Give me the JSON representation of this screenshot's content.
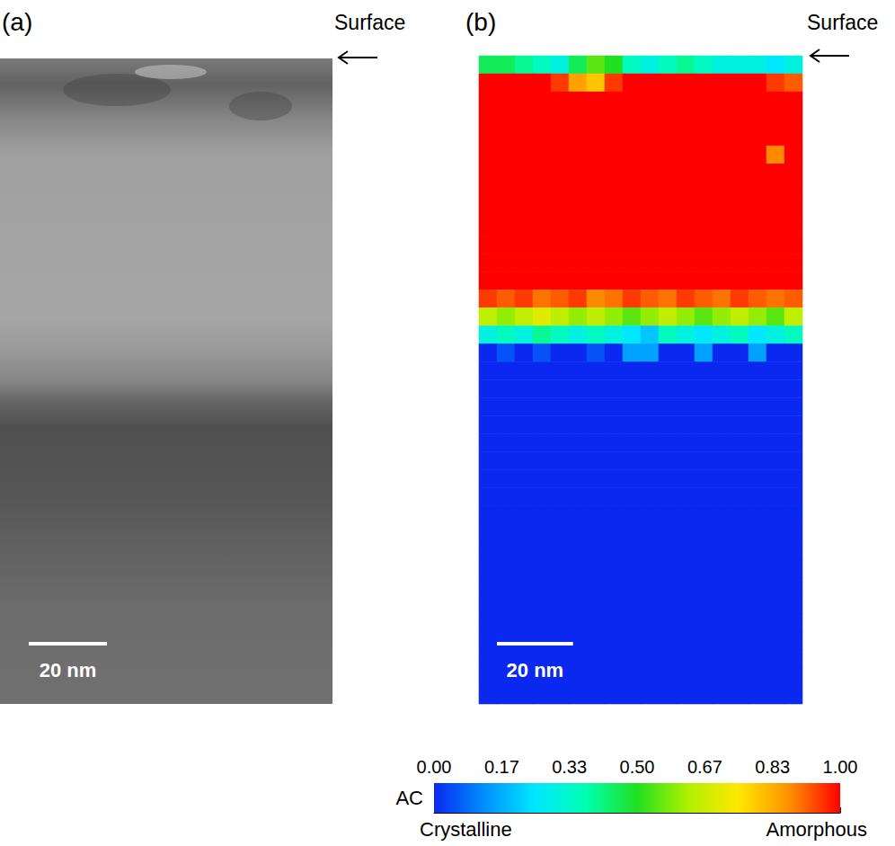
{
  "figure": {
    "panels": [
      {
        "letter": "(a)",
        "annotation": "Surface"
      },
      {
        "letter": "(b)",
        "annotation": "Surface"
      }
    ],
    "scale_bar": {
      "length_nm": 20,
      "label": "20 nm"
    },
    "field_of_view_nm": [
      85,
      170
    ]
  },
  "chart_data": {
    "type": "heatmap",
    "cells": [
      [
        0.45,
        0.45,
        0.4,
        0.35,
        0.3,
        0.45,
        0.55,
        0.5,
        0.35,
        0.3,
        0.35,
        0.4,
        0.35,
        0.3,
        0.3,
        0.3,
        0.25,
        0.3
      ],
      [
        1,
        1,
        1,
        1,
        0.95,
        0.85,
        0.8,
        0.95,
        1,
        1,
        1,
        1,
        1,
        1,
        1,
        1,
        0.95,
        0.92
      ],
      [
        1,
        1,
        1,
        1,
        1,
        1,
        1,
        1,
        1,
        1,
        1,
        1,
        1,
        1,
        1,
        1,
        1,
        1
      ],
      [
        1,
        1,
        1,
        1,
        1,
        1,
        1,
        1,
        1,
        1,
        1,
        1,
        1,
        1,
        1,
        1,
        1,
        1
      ],
      [
        1,
        1,
        1,
        1,
        1,
        1,
        1,
        1,
        1,
        1,
        1,
        1,
        1,
        1,
        1,
        1,
        1,
        1
      ],
      [
        1,
        1,
        1,
        1,
        1,
        1,
        1,
        1,
        1,
        1,
        1,
        1,
        1,
        1,
        1,
        1,
        0.88,
        1
      ],
      [
        1,
        1,
        1,
        1,
        1,
        1,
        1,
        1,
        1,
        1,
        1,
        1,
        1,
        1,
        1,
        1,
        1,
        1
      ],
      [
        1,
        1,
        1,
        1,
        1,
        1,
        1,
        1,
        1,
        1,
        1,
        1,
        1,
        1,
        1,
        1,
        1,
        1
      ],
      [
        1,
        1,
        1,
        1,
        1,
        1,
        1,
        1,
        1,
        1,
        1,
        1,
        1,
        1,
        1,
        1,
        1,
        1
      ],
      [
        1,
        1,
        1,
        1,
        1,
        1,
        1,
        1,
        1,
        1,
        1,
        1,
        1,
        1,
        1,
        1,
        1,
        1
      ],
      [
        1,
        1,
        1,
        1,
        1,
        1,
        1,
        1,
        1,
        1,
        1,
        1,
        1,
        1,
        1,
        1,
        1,
        1
      ],
      [
        1,
        1,
        1,
        1,
        1,
        1,
        1,
        1,
        1,
        1,
        1,
        1,
        1,
        1,
        1,
        1,
        1,
        1
      ],
      [
        1,
        1,
        1,
        1,
        1,
        1,
        1,
        1,
        1,
        1,
        1,
        1,
        1,
        1,
        1,
        1,
        1,
        1
      ],
      [
        0.95,
        0.92,
        0.95,
        0.9,
        0.92,
        0.95,
        0.88,
        0.9,
        0.95,
        0.92,
        0.9,
        0.95,
        0.92,
        0.9,
        0.95,
        0.92,
        0.9,
        0.92
      ],
      [
        0.65,
        0.6,
        0.65,
        0.7,
        0.65,
        0.6,
        0.65,
        0.6,
        0.55,
        0.6,
        0.65,
        0.6,
        0.55,
        0.6,
        0.65,
        0.6,
        0.55,
        0.65
      ],
      [
        0.3,
        0.35,
        0.3,
        0.4,
        0.35,
        0.3,
        0.35,
        0.3,
        0.25,
        0.2,
        0.35,
        0.3,
        0.25,
        0.3,
        0.35,
        0.25,
        0.3,
        0.35
      ],
      [
        0,
        0.05,
        0,
        0.05,
        0,
        0,
        0.05,
        0,
        0.15,
        0.15,
        0,
        0,
        0.15,
        0,
        0,
        0.15,
        0,
        0
      ],
      [
        0,
        0,
        0,
        0,
        0,
        0,
        0,
        0,
        0,
        0,
        0,
        0,
        0,
        0,
        0,
        0,
        0,
        0
      ],
      [
        0,
        0,
        0,
        0,
        0,
        0,
        0,
        0,
        0,
        0,
        0,
        0,
        0,
        0,
        0,
        0,
        0,
        0
      ],
      [
        0,
        0,
        0,
        0,
        0,
        0,
        0,
        0,
        0,
        0,
        0,
        0,
        0,
        0,
        0,
        0,
        0,
        0
      ],
      [
        0,
        0,
        0,
        0,
        0,
        0,
        0,
        0,
        0,
        0,
        0,
        0,
        0,
        0,
        0,
        0,
        0,
        0
      ],
      [
        0,
        0,
        0,
        0,
        0,
        0,
        0,
        0,
        0,
        0,
        0,
        0,
        0,
        0,
        0,
        0,
        0,
        0
      ],
      [
        0,
        0,
        0,
        0,
        0,
        0,
        0,
        0,
        0,
        0,
        0,
        0,
        0,
        0,
        0,
        0,
        0,
        0
      ],
      [
        0,
        0,
        0,
        0,
        0,
        0,
        0,
        0,
        0,
        0,
        0,
        0,
        0,
        0,
        0,
        0,
        0,
        0
      ],
      [
        0,
        0,
        0,
        0,
        0,
        0,
        0,
        0,
        0,
        0,
        0,
        0,
        0,
        0,
        0,
        0,
        0,
        0
      ],
      [
        0,
        0,
        0,
        0,
        0,
        0,
        0,
        0,
        0,
        0,
        0,
        0,
        0,
        0,
        0,
        0,
        0,
        0
      ],
      [
        0,
        0,
        0,
        0,
        0,
        0,
        0,
        0,
        0,
        0,
        0,
        0,
        0,
        0,
        0,
        0,
        0,
        0
      ],
      [
        0,
        0,
        0,
        0,
        0,
        0,
        0,
        0,
        0,
        0,
        0,
        0,
        0,
        0,
        0,
        0,
        0,
        0
      ],
      [
        0,
        0,
        0,
        0,
        0,
        0,
        0,
        0,
        0,
        0,
        0,
        0,
        0,
        0,
        0,
        0,
        0,
        0
      ],
      [
        0,
        0,
        0,
        0,
        0,
        0,
        0,
        0,
        0,
        0,
        0,
        0,
        0,
        0,
        0,
        0,
        0,
        0
      ],
      [
        0,
        0,
        0,
        0,
        0,
        0,
        0,
        0,
        0,
        0,
        0,
        0,
        0,
        0,
        0,
        0,
        0,
        0
      ],
      [
        0,
        0,
        0,
        0,
        0,
        0,
        0,
        0,
        0,
        0,
        0,
        0,
        0,
        0,
        0,
        0,
        0,
        0
      ],
      [
        0,
        0,
        0,
        0,
        0,
        0,
        0,
        0,
        0,
        0,
        0,
        0,
        0,
        0,
        0,
        0,
        0,
        0
      ],
      [
        0,
        0,
        0,
        0,
        0,
        0,
        0,
        0,
        0,
        0,
        0,
        0,
        0,
        0,
        0,
        0,
        0,
        0
      ],
      [
        0,
        0,
        0,
        0,
        0,
        0,
        0,
        0,
        0,
        0,
        0,
        0,
        0,
        0,
        0,
        0,
        0,
        0
      ],
      [
        0,
        0,
        0,
        0,
        0,
        0,
        0,
        0,
        0,
        0,
        0,
        0,
        0,
        0,
        0,
        0,
        0,
        0
      ]
    ],
    "colorbar": {
      "title": "AC",
      "range": [
        0,
        1
      ],
      "ticks": [
        {
          "value": 0,
          "label": "0.00"
        },
        {
          "value": 0.1667,
          "label": "0.17"
        },
        {
          "value": 0.3333,
          "label": "0.33"
        },
        {
          "value": 0.5,
          "label": "0.50"
        },
        {
          "value": 0.6667,
          "label": "0.67"
        },
        {
          "value": 0.8333,
          "label": "0.83"
        },
        {
          "value": 1,
          "label": "1.00"
        }
      ],
      "low_label": "Crystalline",
      "high_label": "Amorphous",
      "colors": [
        "#0a28f0",
        "#0090ff",
        "#00e8ff",
        "#00ffb0",
        "#20e020",
        "#b0f000",
        "#ffe800",
        "#ff9000",
        "#ff0000"
      ]
    },
    "tick_labels": false,
    "grid": false
  }
}
